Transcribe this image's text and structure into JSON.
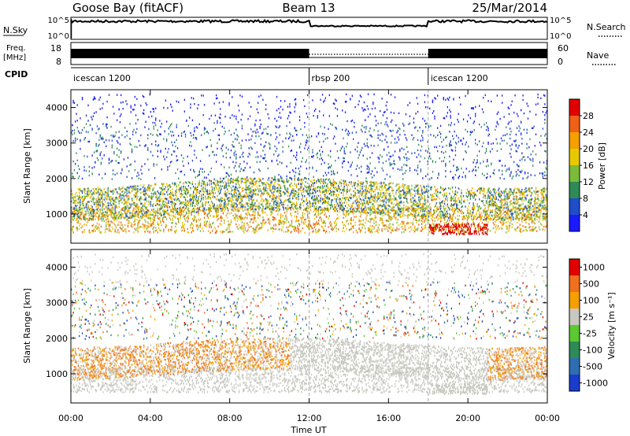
{
  "header": {
    "station": "Goose Bay (fitACF)",
    "beam": "Beam 13",
    "date": "25/Mar/2014"
  },
  "strip_nsky": {
    "label": "N.Sky",
    "right_label": "N.Search",
    "ticks_left": [
      "10^5",
      "10^0"
    ],
    "ticks_right": [
      "10^5",
      "10^0"
    ]
  },
  "strip_freq": {
    "label_line1": "Freq.",
    "label_line2": "[MHz]",
    "right_label": "Nave",
    "ticks_left": [
      "18",
      "8"
    ],
    "ticks_right": [
      "60",
      "0"
    ]
  },
  "strip_cpid": {
    "label": "CPID",
    "segments": [
      {
        "name": "icescan 1200",
        "start_h": 0
      },
      {
        "name": "rbsp 200",
        "start_h": 12
      },
      {
        "name": "icescan 1200",
        "start_h": 18
      }
    ]
  },
  "chart_data": [
    {
      "type": "heatmap",
      "name": "power",
      "ylabel": "Slant Range [km]",
      "ylim": [
        180,
        4500
      ],
      "yticks": [
        1000,
        2000,
        3000,
        4000
      ],
      "colorbar_label": "Power [dB]",
      "colorbar_ticks": [
        "4",
        "8",
        "12",
        "16",
        "20",
        "24",
        "28"
      ],
      "colors": [
        "#1a1aff",
        "#1f4ec8",
        "#2e8b57",
        "#7cbb3a",
        "#e8c800",
        "#f5a000",
        "#f06018",
        "#e00000"
      ]
    },
    {
      "type": "heatmap",
      "name": "velocity",
      "ylabel": "Slant Range [km]",
      "ylim": [
        180,
        4500
      ],
      "yticks": [
        1000,
        2000,
        3000,
        4000
      ],
      "colorbar_label": "Velocity [m s⁻¹]",
      "colorbar_ticks": [
        "1000",
        "500",
        "100",
        "25",
        "-25",
        "-100",
        "-500",
        "-1000"
      ],
      "colors": [
        "#1a3ccc",
        "#2e6eb0",
        "#2e8b57",
        "#5cc832",
        "#c8c8c0",
        "#f5a000",
        "#f07020",
        "#e00000"
      ]
    }
  ],
  "xaxis": {
    "label": "Time UT",
    "range_h": [
      0,
      24
    ],
    "ticks": [
      "00:00",
      "04:00",
      "08:00",
      "12:00",
      "16:00",
      "20:00",
      "00:00"
    ]
  }
}
